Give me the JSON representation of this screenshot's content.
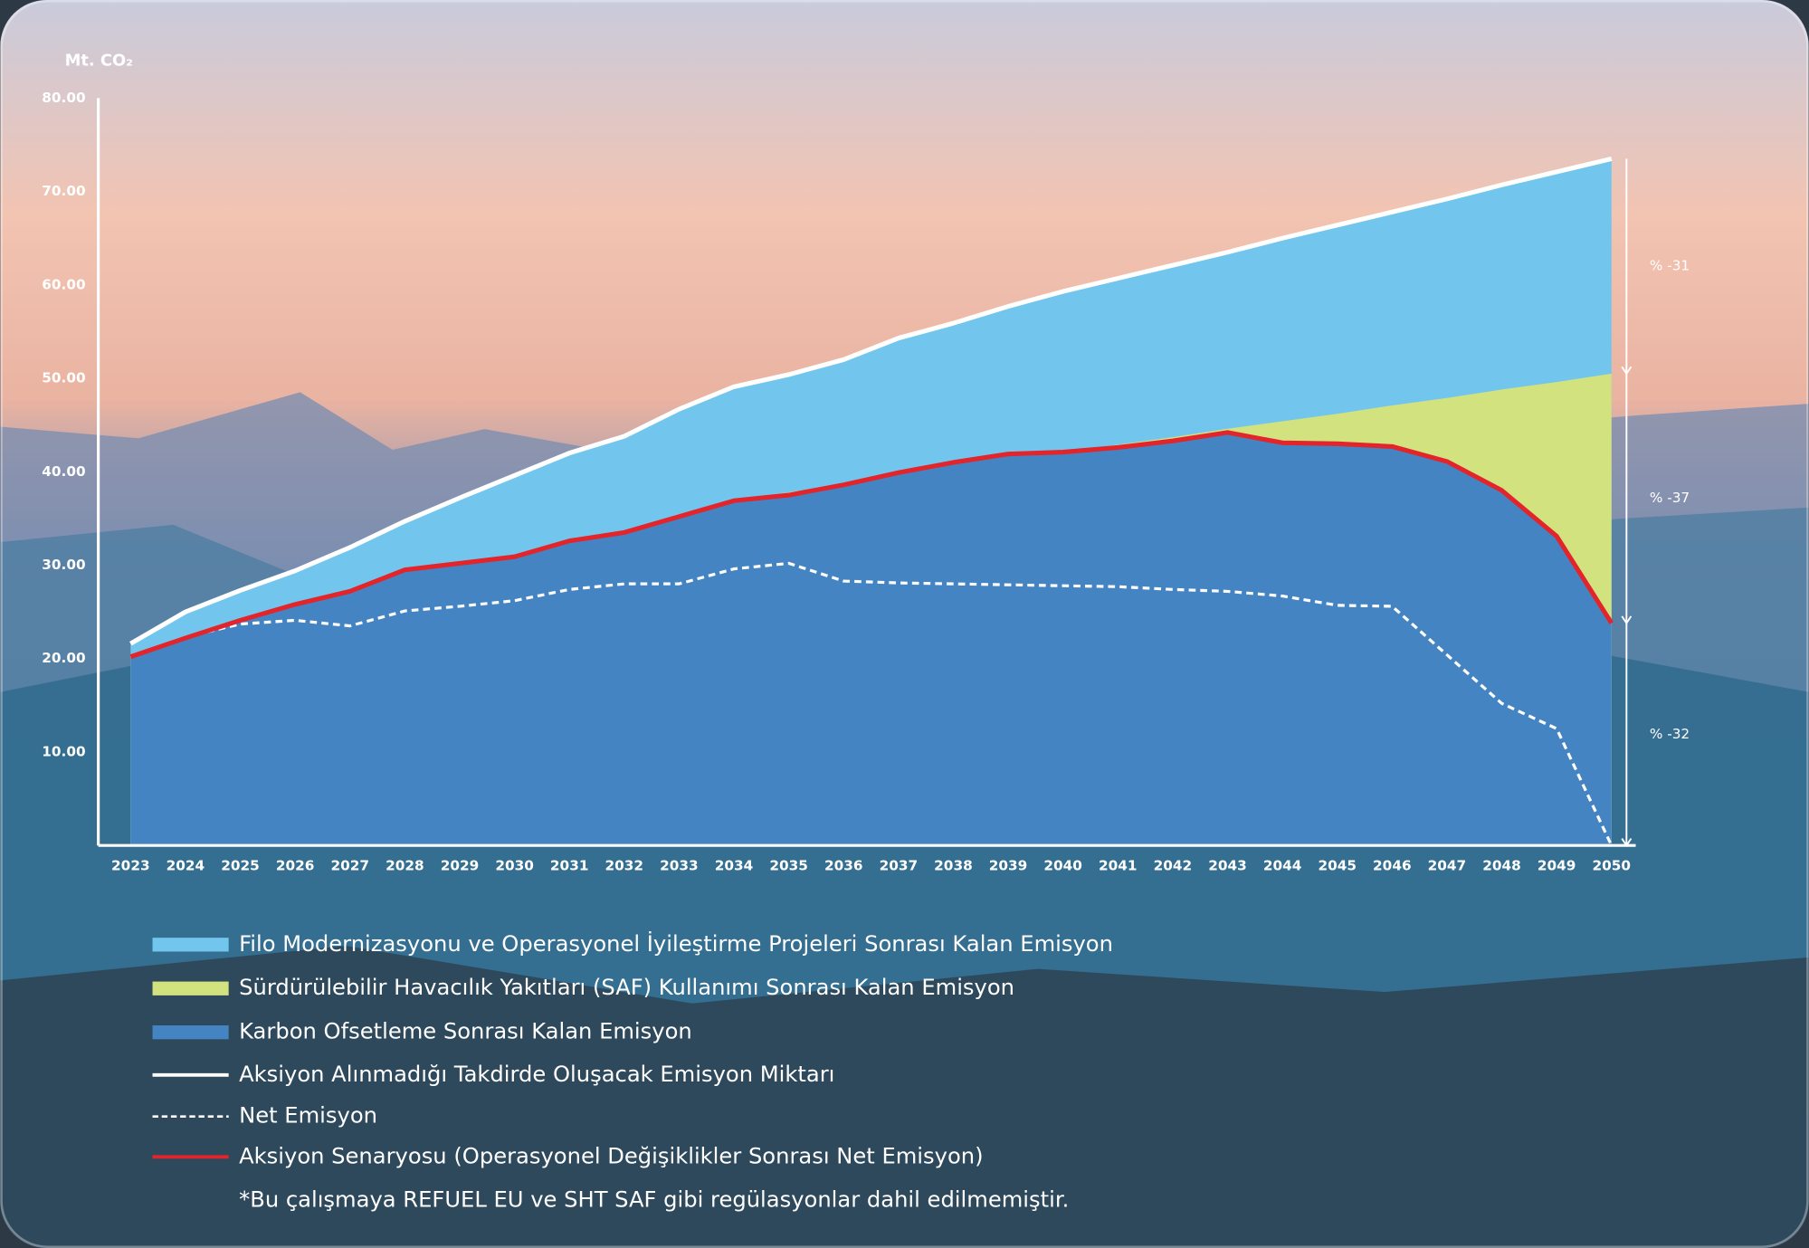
{
  "chart_data": {
    "type": "area",
    "y_label": "Mt. CO₂",
    "categories": [
      "2023",
      "2024",
      "2025",
      "2026",
      "2027",
      "2028",
      "2029",
      "2030",
      "2031",
      "2032",
      "2033",
      "2034",
      "2035",
      "2036",
      "2037",
      "2038",
      "2039",
      "2040",
      "2041",
      "2042",
      "2043",
      "2044",
      "2045",
      "2046",
      "2047",
      "2048",
      "2049",
      "2050"
    ],
    "ylim": [
      0,
      80
    ],
    "yticks": [
      {
        "value": 10,
        "label": "10.00"
      },
      {
        "value": 20,
        "label": "20.00"
      },
      {
        "value": 30,
        "label": "30.00"
      },
      {
        "value": 40,
        "label": "40.00"
      },
      {
        "value": 50,
        "label": "50.00"
      },
      {
        "value": 60,
        "label": "60.00"
      },
      {
        "value": 70,
        "label": "70.00"
      },
      {
        "value": 80,
        "label": "80.00"
      }
    ],
    "grid": false,
    "series": [
      {
        "name": "Filo Modernizasyonu ve Operasyonel İyileştirme Projeleri Sonrası Kalan Emisyon",
        "type": "area",
        "color": "#72c6ee",
        "values": [
          21.6,
          25,
          27.3,
          29.4,
          31.9,
          34.7,
          37.2,
          39.6,
          42,
          43.8,
          46.7,
          49.1,
          50.4,
          52,
          54.3,
          55.9,
          57.7,
          59.3,
          60.7,
          62.1,
          63.5,
          65,
          66.4,
          67.8,
          69.2,
          70.7,
          72.1,
          73.5
        ]
      },
      {
        "name": "Sürdürülebilir Havacılık Yakıtları (SAF) Kullanımı Sonrası Kalan Emisyon",
        "type": "area",
        "color": "#d2e27e",
        "values": [
          20.2,
          22.2,
          24.1,
          25.8,
          27.2,
          29.5,
          30.2,
          30.9,
          32.6,
          33.5,
          35.2,
          37,
          37.8,
          38.7,
          39.5,
          40.4,
          41.2,
          42.1,
          42.9,
          43.7,
          44.6,
          45.4,
          46.2,
          47.1,
          47.9,
          48.8,
          49.6,
          50.5
        ]
      },
      {
        "name": "Karbon Ofsetleme Sonrası Kalan Emisyon",
        "type": "area",
        "color": "#4584c2",
        "values": [
          20.2,
          22.2,
          24.1,
          25.8,
          27.2,
          29.5,
          30.2,
          30.9,
          32.6,
          33.5,
          35.2,
          36.9,
          37.5,
          38.6,
          39.9,
          41,
          41.9,
          42.1,
          42.6,
          43.3,
          44.2,
          43.1,
          43,
          42.7,
          41.1,
          38,
          33.1,
          23.8
        ]
      },
      {
        "name": "Aksiyon Alınmadığı Takdirde Oluşacak Emisyon Miktarı",
        "type": "line",
        "color": "#ffffff",
        "dashed": false,
        "values": [
          21.6,
          25,
          27.3,
          29.4,
          31.9,
          34.7,
          37.2,
          39.6,
          42,
          43.8,
          46.7,
          49.1,
          50.4,
          52,
          54.3,
          55.9,
          57.7,
          59.3,
          60.7,
          62.1,
          63.5,
          65,
          66.4,
          67.8,
          69.2,
          70.7,
          72.1,
          73.5
        ]
      },
      {
        "name": "Net Emisyon",
        "type": "line",
        "color": "#ffffff",
        "dashed": true,
        "values": [
          20.2,
          22.3,
          23.7,
          24.1,
          23.5,
          25.1,
          25.6,
          26.2,
          27.4,
          28,
          28,
          29.6,
          30.2,
          28.3,
          28.1,
          28,
          27.9,
          27.8,
          27.7,
          27.4,
          27.2,
          26.7,
          25.7,
          25.6,
          20.4,
          15.2,
          12.5,
          0
        ]
      },
      {
        "name": "Aksiyon Senaryosu (Operasyonel Değişiklikler Sonrası Net Emisyon)",
        "type": "line",
        "color": "#e3242b",
        "dashed": false,
        "values": [
          20.2,
          22.2,
          24.1,
          25.8,
          27.2,
          29.5,
          30.2,
          30.9,
          32.6,
          33.5,
          35.2,
          36.9,
          37.5,
          38.6,
          39.9,
          41,
          41.9,
          42.1,
          42.6,
          43.3,
          44.2,
          43.1,
          43,
          42.7,
          41.1,
          38,
          33.1,
          23.8
        ]
      }
    ],
    "annotations": [
      "% -31",
      "% -37",
      "% -32"
    ],
    "footnote": "*Bu çalışmaya REFUEL EU ve SHT SAF gibi regülasyonlar dahil edilmemiştir."
  }
}
